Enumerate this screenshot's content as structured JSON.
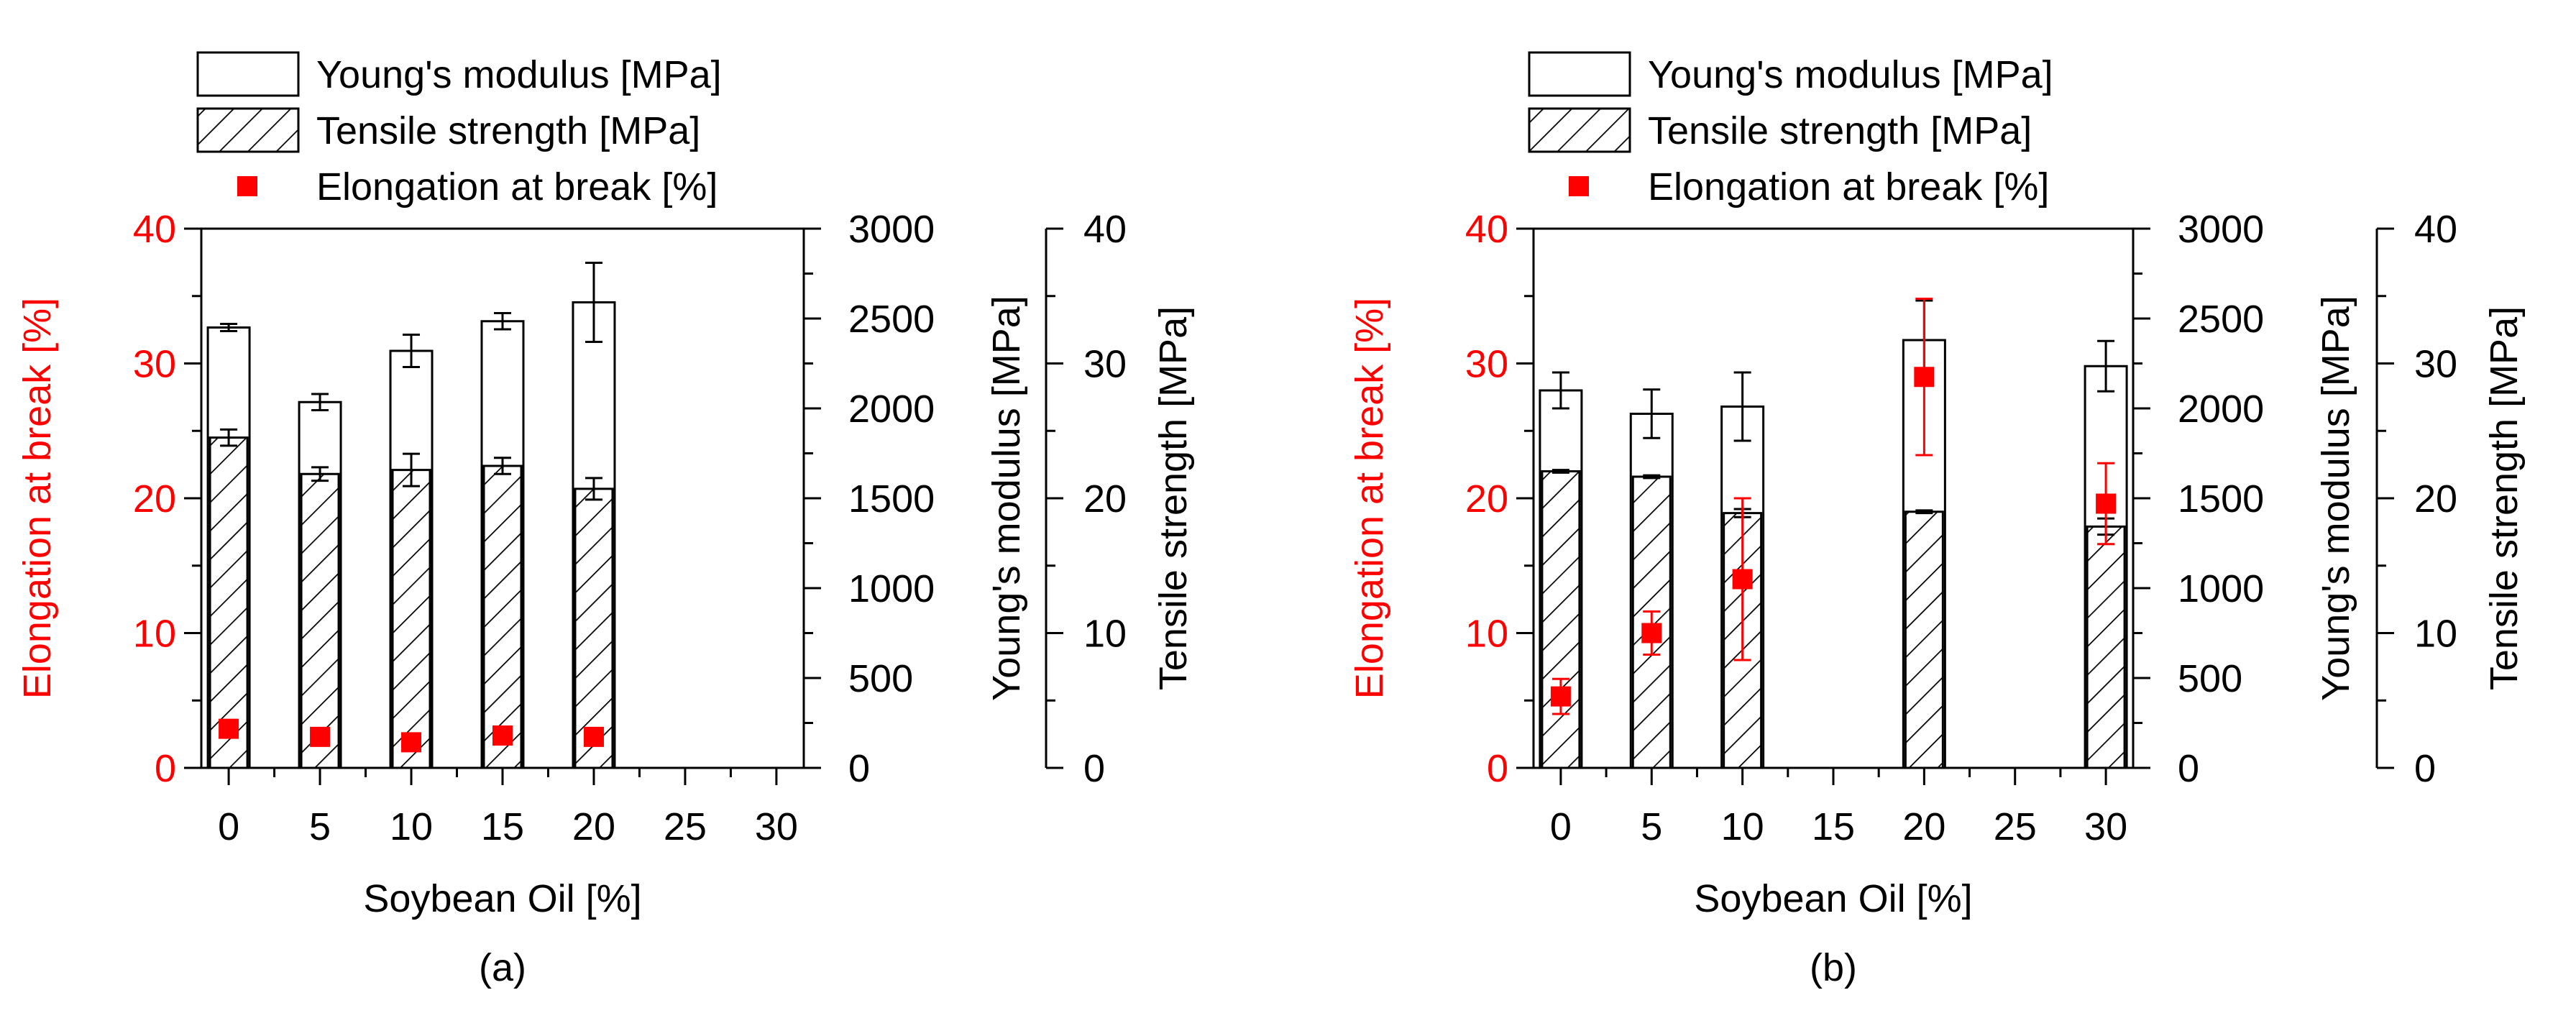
{
  "chart_data": [
    {
      "type": "bar",
      "panel_label": "(a)",
      "xlabel": "Soybean Oil [%]",
      "x_ticks": [
        "0",
        "5",
        "10",
        "15",
        "20",
        "25",
        "30"
      ],
      "axes": {
        "elongation": {
          "label": "Elongation at break [%]",
          "range": [
            0,
            40
          ],
          "ticks": [
            "0",
            "10",
            "20",
            "30",
            "40"
          ]
        },
        "modulus": {
          "label": "Young's modulus [MPa]",
          "range": [
            0,
            3000
          ],
          "ticks": [
            "0",
            "500",
            "1000",
            "1500",
            "2000",
            "2500",
            "3000"
          ]
        },
        "strength": {
          "label": "Tensile strength [MPa]",
          "range": [
            0,
            40
          ],
          "ticks": [
            "0",
            "10",
            "20",
            "30",
            "40"
          ]
        }
      },
      "legend": [
        {
          "key": "modulus",
          "label": "Young's modulus [MPa]"
        },
        {
          "key": "strength",
          "label": "Tensile strength [MPa]"
        },
        {
          "key": "elongation",
          "label": "Elongation at break [%]"
        }
      ],
      "series": {
        "modulus": {
          "x": [
            0,
            5,
            10,
            15,
            20
          ],
          "values": [
            2450,
            2035,
            2320,
            2485,
            2590
          ],
          "errors": [
            20,
            45,
            90,
            45,
            220
          ]
        },
        "strength": {
          "x": [
            0,
            5,
            10,
            15,
            20
          ],
          "values": [
            24.5,
            21.8,
            22.1,
            22.4,
            20.7
          ],
          "errors": [
            0.6,
            0.5,
            1.2,
            0.6,
            0.8
          ]
        },
        "elongation": {
          "x": [
            0,
            5,
            10,
            15,
            20
          ],
          "values": [
            2.9,
            2.3,
            1.9,
            2.4,
            2.3
          ],
          "errors": [
            0.3,
            0.3,
            0.4,
            0.3,
            0.6
          ]
        }
      }
    },
    {
      "type": "bar",
      "panel_label": "(b)",
      "xlabel": "Soybean Oil [%]",
      "x_ticks": [
        "0",
        "5",
        "10",
        "15",
        "20",
        "25",
        "30"
      ],
      "axes": {
        "elongation": {
          "label": "Elongation at break [%]",
          "range": [
            0,
            40
          ],
          "ticks": [
            "0",
            "10",
            "20",
            "30",
            "40"
          ]
        },
        "modulus": {
          "label": "Young's modulus [MPa]",
          "range": [
            0,
            3000
          ],
          "ticks": [
            "0",
            "500",
            "1000",
            "1500",
            "2000",
            "2500",
            "3000"
          ]
        },
        "strength": {
          "label": "Tensile strength [MPa]",
          "range": [
            0,
            40
          ],
          "ticks": [
            "0",
            "10",
            "20",
            "30",
            "40"
          ]
        }
      },
      "legend": [
        {
          "key": "modulus",
          "label": "Young's modulus [MPa]"
        },
        {
          "key": "strength",
          "label": "Tensile strength [MPa]"
        },
        {
          "key": "elongation",
          "label": "Elongation at break [%]"
        }
      ],
      "series": {
        "modulus": {
          "x": [
            0,
            5,
            10,
            20,
            30
          ],
          "values": [
            2100,
            1970,
            2010,
            2380,
            2235
          ],
          "errors": [
            100,
            135,
            190,
            220,
            140
          ]
        },
        "strength": {
          "x": [
            0,
            5,
            10,
            20,
            30
          ],
          "values": [
            22.0,
            21.6,
            18.9,
            19.0,
            17.9
          ],
          "errors": [
            0.1,
            0.1,
            0.3,
            0.1,
            0.6
          ]
        },
        "elongation": {
          "x": [
            0,
            5,
            10,
            20,
            30
          ],
          "values": [
            5.3,
            10.0,
            14.0,
            29.0,
            19.6
          ],
          "errors": [
            1.3,
            1.6,
            6.0,
            5.8,
            3.0
          ]
        }
      }
    }
  ],
  "colors": {
    "elongation": "#ff0000",
    "axis": "#000000",
    "bar_fill": "#ffffff",
    "background": "#ffffff"
  }
}
